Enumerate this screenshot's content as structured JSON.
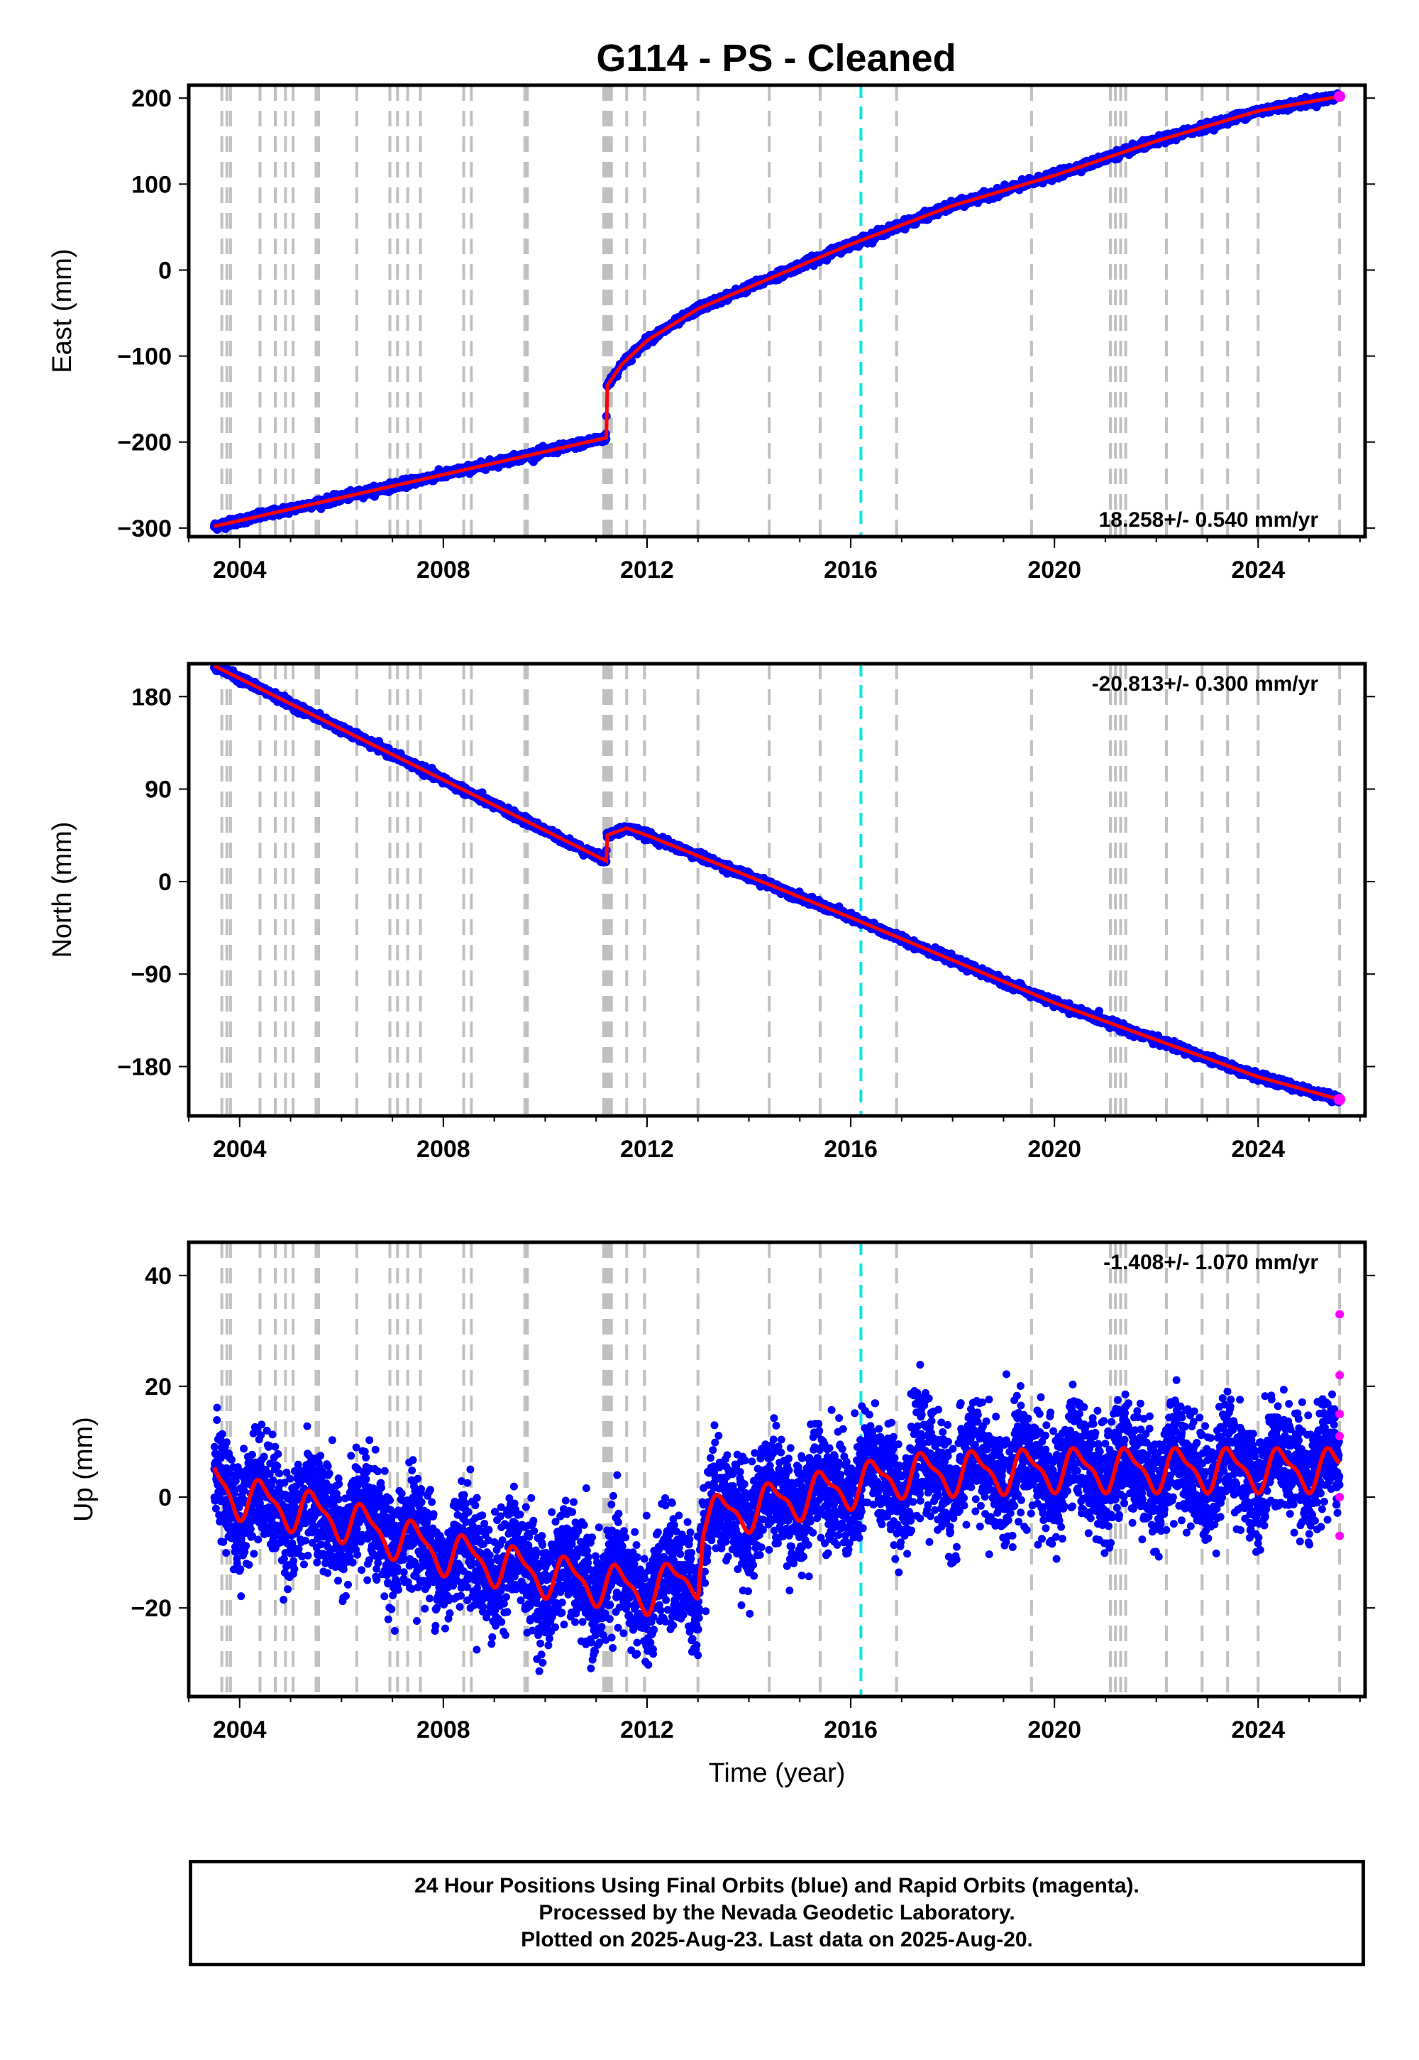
{
  "chart_data": [
    {
      "type": "scatter",
      "title": "G114  - PS - Cleaned",
      "ylabel": "East (mm)",
      "xlabel": "",
      "xlim": [
        2003.0,
        2026.1
      ],
      "ylim": [
        -310,
        215
      ],
      "yticks": [
        -300,
        -200,
        -100,
        0,
        100,
        200
      ],
      "xticks": [
        2004,
        2008,
        2012,
        2016,
        2020,
        2024
      ],
      "rate_label": "18.258+/- 0.540 mm/yr",
      "fit_model": {
        "x": [
          2003.5,
          2011.2,
          2011.21,
          2011.5,
          2012.0,
          2013.0,
          2014.0,
          2016.0,
          2018.0,
          2020.0,
          2022.0,
          2024.0,
          2025.6
        ],
        "y": [
          -298,
          -195,
          -135,
          -110,
          -82,
          -45,
          -20,
          30,
          75,
          110,
          150,
          185,
          202
        ]
      },
      "grid": false
    },
    {
      "type": "scatter",
      "ylabel": "North (mm)",
      "xlabel": "",
      "xlim": [
        2003.0,
        2026.1
      ],
      "ylim": [
        -228,
        212
      ],
      "yticks": [
        -180,
        -90,
        0,
        90,
        180
      ],
      "xticks": [
        2004,
        2008,
        2012,
        2016,
        2020,
        2024
      ],
      "rate_label": "-20.813+/- 0.300 mm/yr",
      "fit_model": {
        "x": [
          2003.5,
          2011.2,
          2011.21,
          2011.6,
          2012.0,
          2016.0,
          2020.0,
          2024.0,
          2025.6
        ],
        "y": [
          210,
          20,
          45,
          52,
          45,
          -35,
          -118,
          -190,
          -212
        ]
      },
      "grid": false
    },
    {
      "type": "scatter",
      "ylabel": "Up (mm)",
      "xlabel": "Time (year)",
      "xlim": [
        2003.0,
        2026.1
      ],
      "ylim": [
        -36,
        46
      ],
      "yticks": [
        -20,
        0,
        20,
        40
      ],
      "xticks": [
        2004,
        2008,
        2012,
        2016,
        2020,
        2024
      ],
      "rate_label": "-1.408+/- 1.070 mm/yr",
      "trend_model": {
        "x": [
          2003.5,
          2004.0,
          2006.0,
          2008.0,
          2010.0,
          2012.0,
          2013.0,
          2013.1,
          2015.0,
          2017.0,
          2020.0,
          2025.6
        ],
        "y": [
          3,
          0,
          -4,
          -10,
          -14,
          -17,
          -14,
          -4,
          0,
          4,
          5,
          5
        ]
      },
      "seasonal_amplitude_mm": 3.5,
      "rapid_orbit_points": {
        "x": [
          2025.6,
          2025.6,
          2025.6,
          2025.6,
          2025.6,
          2025.6
        ],
        "y": [
          33,
          22,
          15,
          11,
          0,
          -7
        ]
      },
      "grid": false
    }
  ],
  "series_colors": {
    "final_orbits": "#0000ff",
    "rapid_orbits": "#ff00ff",
    "model": "#ff0000",
    "event_lines": "#c0c0c0",
    "highlight_line": "#00e5ee"
  },
  "event_lines_years": [
    2003.65,
    2003.75,
    2003.82,
    2004.4,
    2004.7,
    2004.9,
    2005.05,
    2005.5,
    2005.55,
    2006.3,
    2006.95,
    2007.1,
    2007.3,
    2007.55,
    2008.4,
    2008.55,
    2009.6,
    2009.65,
    2011.15,
    2011.2,
    2011.25,
    2011.3,
    2011.6,
    2011.95,
    2013.0,
    2014.4,
    2015.4,
    2016.9,
    2019.55,
    2021.1,
    2021.2,
    2021.3,
    2021.4,
    2022.2,
    2022.9,
    2023.4,
    2024.0,
    2025.6
  ],
  "highlight_line_year": 2016.2,
  "footer": {
    "line1": "24 Hour Positions Using Final Orbits (blue) and Rapid Orbits (magenta).",
    "line2": "Processed by the Nevada Geodetic Laboratory.",
    "line3": "Plotted on 2025-Aug-23. Last data on 2025-Aug-20."
  }
}
